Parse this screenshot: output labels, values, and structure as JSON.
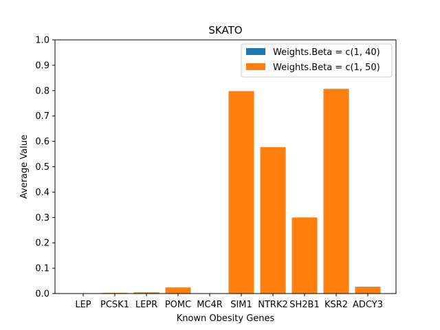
{
  "chart_data": {
    "type": "bar",
    "title": "SKATO",
    "xlabel": "Known Obesity Genes",
    "ylabel": "Average Value",
    "ylim": [
      0,
      1.0
    ],
    "yticks": [
      "0.0",
      "0.1",
      "0.2",
      "0.3",
      "0.4",
      "0.5",
      "0.6",
      "0.7",
      "0.8",
      "0.9",
      "1.0"
    ],
    "categories": [
      "LEP",
      "PCSK1",
      "LEPR",
      "POMC",
      "MC4R",
      "SIM1",
      "NTRK2",
      "SH2B1",
      "KSR2",
      "ADCY3"
    ],
    "series": [
      {
        "name": "Weights.Beta = c(1, 40)",
        "color": "#1f77b4",
        "values": [
          0.0,
          0.002,
          0.004,
          0.022,
          0.0,
          0.796,
          0.576,
          0.298,
          0.805,
          0.025
        ]
      },
      {
        "name": "Weights.Beta = c(1, 50)",
        "color": "#ff7f0e",
        "values": [
          0.0,
          0.003,
          0.005,
          0.024,
          0.0,
          0.798,
          0.577,
          0.3,
          0.807,
          0.027
        ]
      }
    ],
    "legend_position": "top-right",
    "grid": false
  }
}
